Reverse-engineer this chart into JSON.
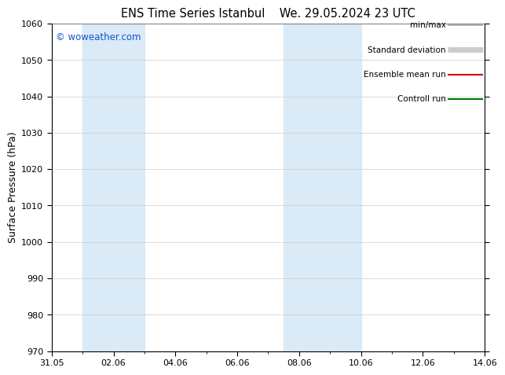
{
  "title_left": "ENS Time Series Istanbul",
  "title_right": "We. 29.05.2024 23 UTC",
  "ylabel": "Surface Pressure (hPa)",
  "ylim": [
    970,
    1060
  ],
  "yticks": [
    970,
    980,
    990,
    1000,
    1010,
    1020,
    1030,
    1040,
    1050,
    1060
  ],
  "xlim_days": [
    0,
    14
  ],
  "x_tick_labels": [
    "31.05",
    "02.06",
    "04.06",
    "06.06",
    "08.06",
    "10.06",
    "12.06",
    "14.06"
  ],
  "x_tick_positions": [
    0,
    2,
    4,
    6,
    8,
    10,
    12,
    14
  ],
  "shaded_regions": [
    {
      "xmin": 1.0,
      "xmax": 3.0,
      "color": "#daeaf7"
    },
    {
      "xmin": 7.5,
      "xmax": 10.0,
      "color": "#daeaf7"
    }
  ],
  "watermark": "© woweather.com",
  "watermark_color": "#1155cc",
  "legend_items": [
    {
      "label": "min/max",
      "color": "#aaaaaa",
      "lw": 1.2
    },
    {
      "label": "Standard deviation",
      "color": "#cccccc",
      "lw": 5
    },
    {
      "label": "Ensemble mean run",
      "color": "#cc0000",
      "lw": 1.5
    },
    {
      "label": "Controll run",
      "color": "#007700",
      "lw": 1.5
    }
  ],
  "background_color": "#ffffff",
  "grid_color": "#cccccc",
  "fig_width": 6.34,
  "fig_height": 4.9,
  "dpi": 100
}
